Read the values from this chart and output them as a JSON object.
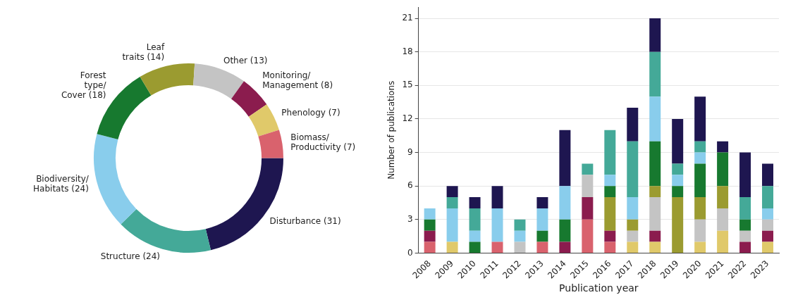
{
  "chart_data": [
    {
      "type": "donut",
      "categories": [
        "Disturbance (31)",
        "Structure (24)",
        "Biodiversity/\nHabitats (24)",
        "Forest\ntype/\nCover (18)",
        "Leaf\ntraits (14)",
        "Other (13)",
        "Monitoring/\nManagement (8)",
        "Phenology (7)",
        "Biomass/\nProductivity (7)"
      ],
      "values": [
        31,
        24,
        24,
        18,
        14,
        13,
        8,
        7,
        7
      ],
      "colors": [
        "#1e1650",
        "#44a998",
        "#89cdec",
        "#17792f",
        "#9b9b30",
        "#c4c4c4",
        "#8b1c4e",
        "#e0c96a",
        "#d9626d"
      ]
    },
    {
      "type": "bar",
      "stacked": true,
      "xlabel": "Publication year",
      "ylabel": "Number of publications",
      "categories": [
        "2008",
        "2009",
        "2010",
        "2011",
        "2012",
        "2013",
        "2014",
        "2015",
        "2016",
        "2017",
        "2018",
        "2019",
        "2020",
        "2021",
        "2022",
        "2023"
      ],
      "series": [
        {
          "color": "#d9626d",
          "values": [
            1,
            0,
            0,
            1,
            0,
            1,
            0,
            3,
            1,
            0,
            0,
            0,
            0,
            0,
            0,
            0
          ]
        },
        {
          "color": "#e0c96a",
          "values": [
            0,
            1,
            0,
            0,
            0,
            0,
            0,
            0,
            0,
            1,
            1,
            0,
            1,
            2,
            0,
            1
          ]
        },
        {
          "color": "#8b1c4e",
          "values": [
            1,
            0,
            0,
            0,
            0,
            0,
            1,
            2,
            1,
            0,
            1,
            0,
            0,
            0,
            1,
            1
          ]
        },
        {
          "color": "#c4c4c4",
          "values": [
            0,
            0,
            0,
            0,
            1,
            0,
            0,
            2,
            0,
            1,
            3,
            0,
            2,
            2,
            1,
            1
          ]
        },
        {
          "color": "#9b9b30",
          "values": [
            0,
            0,
            0,
            0,
            0,
            0,
            0,
            0,
            3,
            1,
            1,
            5,
            2,
            2,
            0,
            0
          ]
        },
        {
          "color": "#17792f",
          "values": [
            1,
            0,
            1,
            0,
            0,
            1,
            2,
            0,
            1,
            0,
            4,
            1,
            3,
            3,
            1,
            0
          ]
        },
        {
          "color": "#89cdec",
          "values": [
            1,
            3,
            1,
            3,
            1,
            2,
            3,
            0,
            1,
            2,
            4,
            1,
            1,
            0,
            0,
            1
          ]
        },
        {
          "color": "#44a998",
          "values": [
            0,
            1,
            2,
            0,
            1,
            0,
            0,
            1,
            4,
            5,
            4,
            1,
            1,
            0,
            2,
            2
          ]
        },
        {
          "color": "#1e1650",
          "values": [
            0,
            1,
            1,
            2,
            0,
            1,
            5,
            0,
            0,
            3,
            3,
            4,
            4,
            1,
            4,
            2
          ]
        }
      ],
      "ylim": [
        0,
        22
      ],
      "yticks": [
        0,
        3,
        6,
        9,
        12,
        15,
        18,
        21
      ],
      "grid": "y",
      "legend": false
    }
  ]
}
